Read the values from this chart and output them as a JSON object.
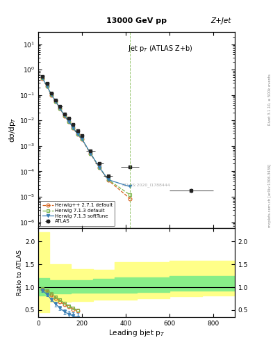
{
  "title_top": "13000 GeV pp",
  "title_right": "Z+Jet",
  "plot_title": "Jet p$_T$ (ATLAS Z+b)",
  "xlabel": "Leading bjet p$_T$",
  "ylabel_main": "dσ/dp$_T$",
  "ylabel_ratio": "Ratio to ATLAS",
  "watermark": "ATLAS:2020_I1788444",
  "right_label": "mcplots.cern.ch [arXiv:1306.3436]",
  "rivet_label": "Rivet 3.1.10, ≥ 500k events",
  "xlim": [
    0,
    900
  ],
  "ylim_main": [
    6e-07,
    30
  ],
  "ylim_ratio": [
    0.35,
    2.3
  ],
  "atlas_data_x": [
    20,
    40,
    60,
    80,
    100,
    120,
    140,
    160,
    180,
    200,
    240,
    280,
    320,
    420,
    700
  ],
  "atlas_data_y": [
    0.55,
    0.28,
    0.12,
    0.065,
    0.035,
    0.018,
    0.012,
    0.007,
    0.004,
    0.0025,
    0.00065,
    0.0002,
    6.5e-05,
    0.00015,
    1.8e-05
  ],
  "atlas_data_xerr": [
    10,
    10,
    10,
    10,
    10,
    10,
    10,
    10,
    10,
    10,
    20,
    20,
    20,
    40,
    100
  ],
  "atlas_data_yerr": [
    0.05,
    0.025,
    0.01,
    0.006,
    0.003,
    0.0015,
    0.001,
    0.0006,
    0.0003,
    0.0002,
    8e-05,
    3e-05,
    8e-06,
    2e-05,
    3e-06
  ],
  "hwpp_x": [
    20,
    40,
    60,
    80,
    100,
    120,
    140,
    160,
    180,
    200,
    240,
    280,
    320,
    420
  ],
  "hwpp_y": [
    0.45,
    0.22,
    0.1,
    0.055,
    0.029,
    0.015,
    0.009,
    0.005,
    0.0028,
    0.0018,
    0.00048,
    0.00014,
    4.5e-05,
    8.5e-06
  ],
  "hw713_x": [
    20,
    40,
    60,
    80,
    100,
    120,
    140,
    160,
    180,
    200,
    240,
    280,
    320,
    420
  ],
  "hw713_y": [
    0.46,
    0.225,
    0.105,
    0.057,
    0.03,
    0.0155,
    0.0092,
    0.0052,
    0.0029,
    0.0019,
    0.0005,
    0.000145,
    4.7e-05,
    1.2e-05
  ],
  "hw713st_x": [
    20,
    40,
    60,
    80,
    100,
    120,
    140,
    160,
    180,
    200,
    240,
    280,
    320,
    420
  ],
  "hw713st_y": [
    0.46,
    0.225,
    0.105,
    0.057,
    0.03,
    0.0155,
    0.0092,
    0.0052,
    0.0029,
    0.0019,
    0.0005,
    0.000145,
    4.7e-05,
    2.5e-05
  ],
  "hwpp_color": "#d4601a",
  "hw713_color": "#7ab648",
  "hw713st_color": "#3b7fb5",
  "atlas_color": "#222222",
  "band_x_edges": [
    0,
    50,
    150,
    250,
    350,
    450,
    600,
    750,
    900
  ],
  "yellow_lo": [
    0.45,
    0.68,
    0.7,
    0.72,
    0.72,
    0.75,
    0.8,
    0.82
  ],
  "yellow_hi": [
    2.2,
    1.5,
    1.4,
    1.38,
    1.55,
    1.55,
    1.58,
    1.58
  ],
  "green_lo": [
    0.82,
    0.87,
    0.88,
    0.88,
    0.88,
    0.9,
    0.92,
    0.92
  ],
  "green_hi": [
    1.2,
    1.16,
    1.15,
    1.18,
    1.22,
    1.22,
    1.25,
    1.25
  ],
  "hwpp_ratio_x": [
    20,
    40,
    60,
    80,
    100,
    120,
    140,
    160,
    180
  ],
  "hwpp_ratio_y": [
    0.96,
    0.91,
    0.83,
    0.76,
    0.68,
    0.62,
    0.57,
    0.52,
    0.48
  ],
  "hw713_ratio_x": [
    20,
    40,
    60,
    80,
    100,
    120,
    140,
    160,
    180
  ],
  "hw713_ratio_y": [
    0.97,
    0.93,
    0.86,
    0.79,
    0.72,
    0.65,
    0.59,
    0.54,
    0.5
  ],
  "hw713st_ratio_x": [
    20,
    40,
    60,
    80,
    100,
    120,
    140,
    160,
    180
  ],
  "hw713st_ratio_y": [
    0.93,
    0.84,
    0.73,
    0.63,
    0.54,
    0.46,
    0.41,
    0.37,
    0.33
  ],
  "hw713st_ratio_yerr": [
    0.04,
    0.04,
    0.04,
    0.05,
    0.05,
    0.06,
    0.07,
    0.08,
    0.1
  ]
}
